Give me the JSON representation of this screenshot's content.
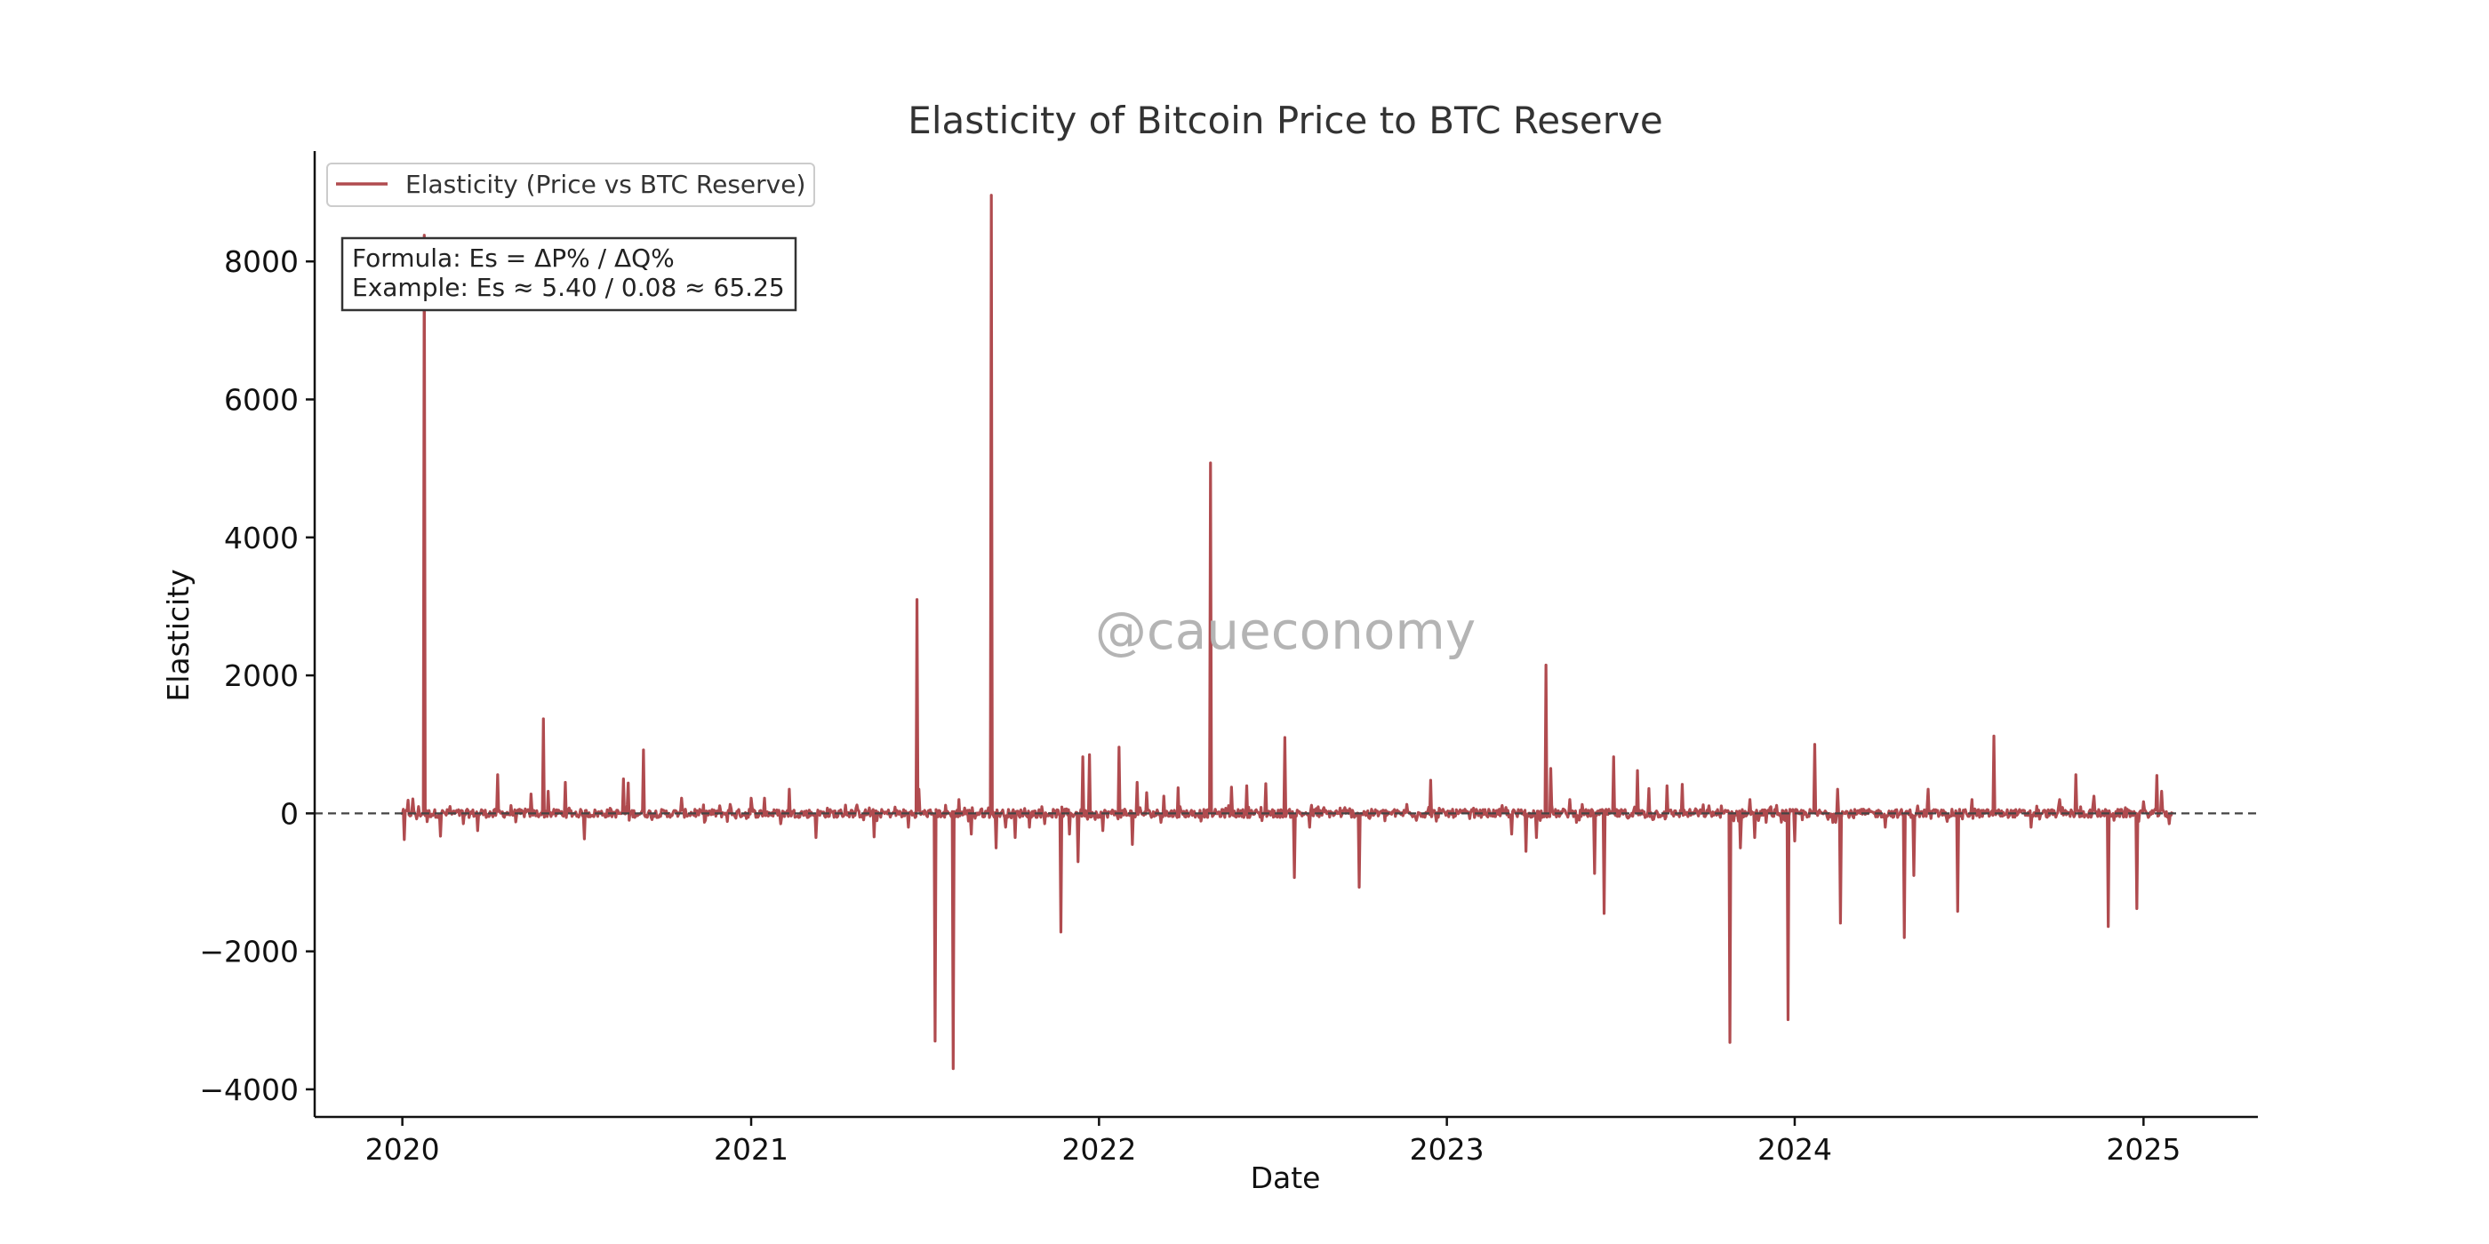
{
  "chart_data": {
    "type": "line",
    "title": "Elasticity of Bitcoin Price to BTC Reserve",
    "xlabel": "Date",
    "ylabel": "Elasticity",
    "xlim": [
      "2019-10-01",
      "2025-05-01"
    ],
    "ylim": [
      -4400,
      9600
    ],
    "x_ticks": [
      "2020",
      "2021",
      "2022",
      "2023",
      "2024",
      "2025"
    ],
    "y_ticks": [
      -4000,
      -2000,
      0,
      2000,
      4000,
      6000,
      8000
    ],
    "y_tick_labels": [
      "−4000",
      "−2000",
      "0",
      "2000",
      "4000",
      "6000",
      "8000"
    ],
    "grid": false,
    "legend": {
      "placement": "top-left",
      "entries": [
        "Elasticity (Price vs BTC Reserve)"
      ]
    },
    "annotations": {
      "formula": "Formula: Es = ΔP% / ΔQ%",
      "example": "Example: Es ≈ 5.40 / 0.08 ≈ 65.25",
      "watermark": "@caueconomy",
      "reference_line_y": 0
    },
    "colors": {
      "series": "#b04b4f",
      "zero_line": "#444444",
      "axes": "#111111"
    },
    "series": [
      {
        "name": "Elasticity (Price vs BTC Reserve)",
        "x_start": "2020-01-01",
        "x_end": "2025-01-31",
        "baseline_noise": 60,
        "spikes": [
          [
            "2020-01-03",
            -380
          ],
          [
            "2020-01-07",
            190
          ],
          [
            "2020-01-12",
            210
          ],
          [
            "2020-01-16",
            -80
          ],
          [
            "2020-01-24",
            8380
          ],
          [
            "2020-01-27",
            -120
          ],
          [
            "2020-02-10",
            -330
          ],
          [
            "2020-02-20",
            100
          ],
          [
            "2020-03-05",
            -150
          ],
          [
            "2020-03-20",
            -250
          ],
          [
            "2020-04-10",
            560
          ],
          [
            "2020-05-15",
            280
          ],
          [
            "2020-05-28",
            1370
          ],
          [
            "2020-06-02",
            320
          ],
          [
            "2020-06-20",
            450
          ],
          [
            "2020-07-10",
            -370
          ],
          [
            "2020-08-20",
            500
          ],
          [
            "2020-08-25",
            440
          ],
          [
            "2020-09-10",
            920
          ],
          [
            "2020-10-20",
            220
          ],
          [
            "2020-12-10",
            130
          ],
          [
            "2021-01-01",
            220
          ],
          [
            "2021-01-15",
            220
          ],
          [
            "2021-02-01",
            -150
          ],
          [
            "2021-02-10",
            350
          ],
          [
            "2021-03-10",
            -350
          ],
          [
            "2021-04-10",
            120
          ],
          [
            "2021-05-10",
            -340
          ],
          [
            "2021-06-15",
            -200
          ],
          [
            "2021-06-24",
            3100
          ],
          [
            "2021-06-26",
            350
          ],
          [
            "2021-07-13",
            -3300
          ],
          [
            "2021-08-01",
            -3700
          ],
          [
            "2021-08-07",
            200
          ],
          [
            "2021-08-20",
            -300
          ],
          [
            "2021-09-10",
            8960
          ],
          [
            "2021-09-15",
            -500
          ],
          [
            "2021-09-25",
            -200
          ],
          [
            "2021-10-05",
            -350
          ],
          [
            "2021-10-20",
            -200
          ],
          [
            "2021-11-05",
            -150
          ],
          [
            "2021-11-22",
            -1720
          ],
          [
            "2021-12-01",
            -300
          ],
          [
            "2021-12-10",
            -700
          ],
          [
            "2021-12-15",
            820
          ],
          [
            "2021-12-22",
            850
          ],
          [
            "2022-01-05",
            -250
          ],
          [
            "2022-01-22",
            960
          ],
          [
            "2022-02-05",
            -450
          ],
          [
            "2022-02-10",
            450
          ],
          [
            "2022-02-20",
            300
          ],
          [
            "2022-03-10",
            250
          ],
          [
            "2022-03-25",
            370
          ],
          [
            "2022-04-28",
            5080
          ],
          [
            "2022-05-20",
            380
          ],
          [
            "2022-06-05",
            400
          ],
          [
            "2022-06-25",
            430
          ],
          [
            "2022-07-15",
            1100
          ],
          [
            "2022-07-25",
            -930
          ],
          [
            "2022-08-10",
            -200
          ],
          [
            "2022-10-01",
            -1070
          ],
          [
            "2022-11-20",
            130
          ],
          [
            "2022-12-15",
            480
          ],
          [
            "2023-03-10",
            -300
          ],
          [
            "2023-03-25",
            -550
          ],
          [
            "2023-04-05",
            -350
          ],
          [
            "2023-04-15",
            2150
          ],
          [
            "2023-04-20",
            650
          ],
          [
            "2023-05-10",
            200
          ],
          [
            "2023-06-05",
            -870
          ],
          [
            "2023-06-15",
            -1450
          ],
          [
            "2023-06-25",
            820
          ],
          [
            "2023-07-20",
            620
          ],
          [
            "2023-08-01",
            360
          ],
          [
            "2023-08-20",
            400
          ],
          [
            "2023-09-05",
            420
          ],
          [
            "2023-10-25",
            -3320
          ],
          [
            "2023-11-05",
            -500
          ],
          [
            "2023-11-15",
            200
          ],
          [
            "2023-11-20",
            -350
          ],
          [
            "2023-12-25",
            -2990
          ],
          [
            "2024-01-01",
            -400
          ],
          [
            "2024-01-22",
            1000
          ],
          [
            "2024-02-15",
            350
          ],
          [
            "2024-02-18",
            -1590
          ],
          [
            "2024-04-05",
            -200
          ],
          [
            "2024-04-25",
            -1800
          ],
          [
            "2024-05-05",
            -900
          ],
          [
            "2024-05-20",
            350
          ],
          [
            "2024-06-20",
            -1420
          ],
          [
            "2024-07-05",
            200
          ],
          [
            "2024-07-28",
            1120
          ],
          [
            "2024-09-05",
            -200
          ],
          [
            "2024-10-05",
            200
          ],
          [
            "2024-10-22",
            560
          ],
          [
            "2024-11-10",
            250
          ],
          [
            "2024-11-25",
            -1640
          ],
          [
            "2024-12-25",
            -1380
          ],
          [
            "2025-01-01",
            170
          ],
          [
            "2025-01-15",
            550
          ],
          [
            "2025-01-20",
            320
          ],
          [
            "2025-01-28",
            -150
          ]
        ]
      }
    ]
  }
}
